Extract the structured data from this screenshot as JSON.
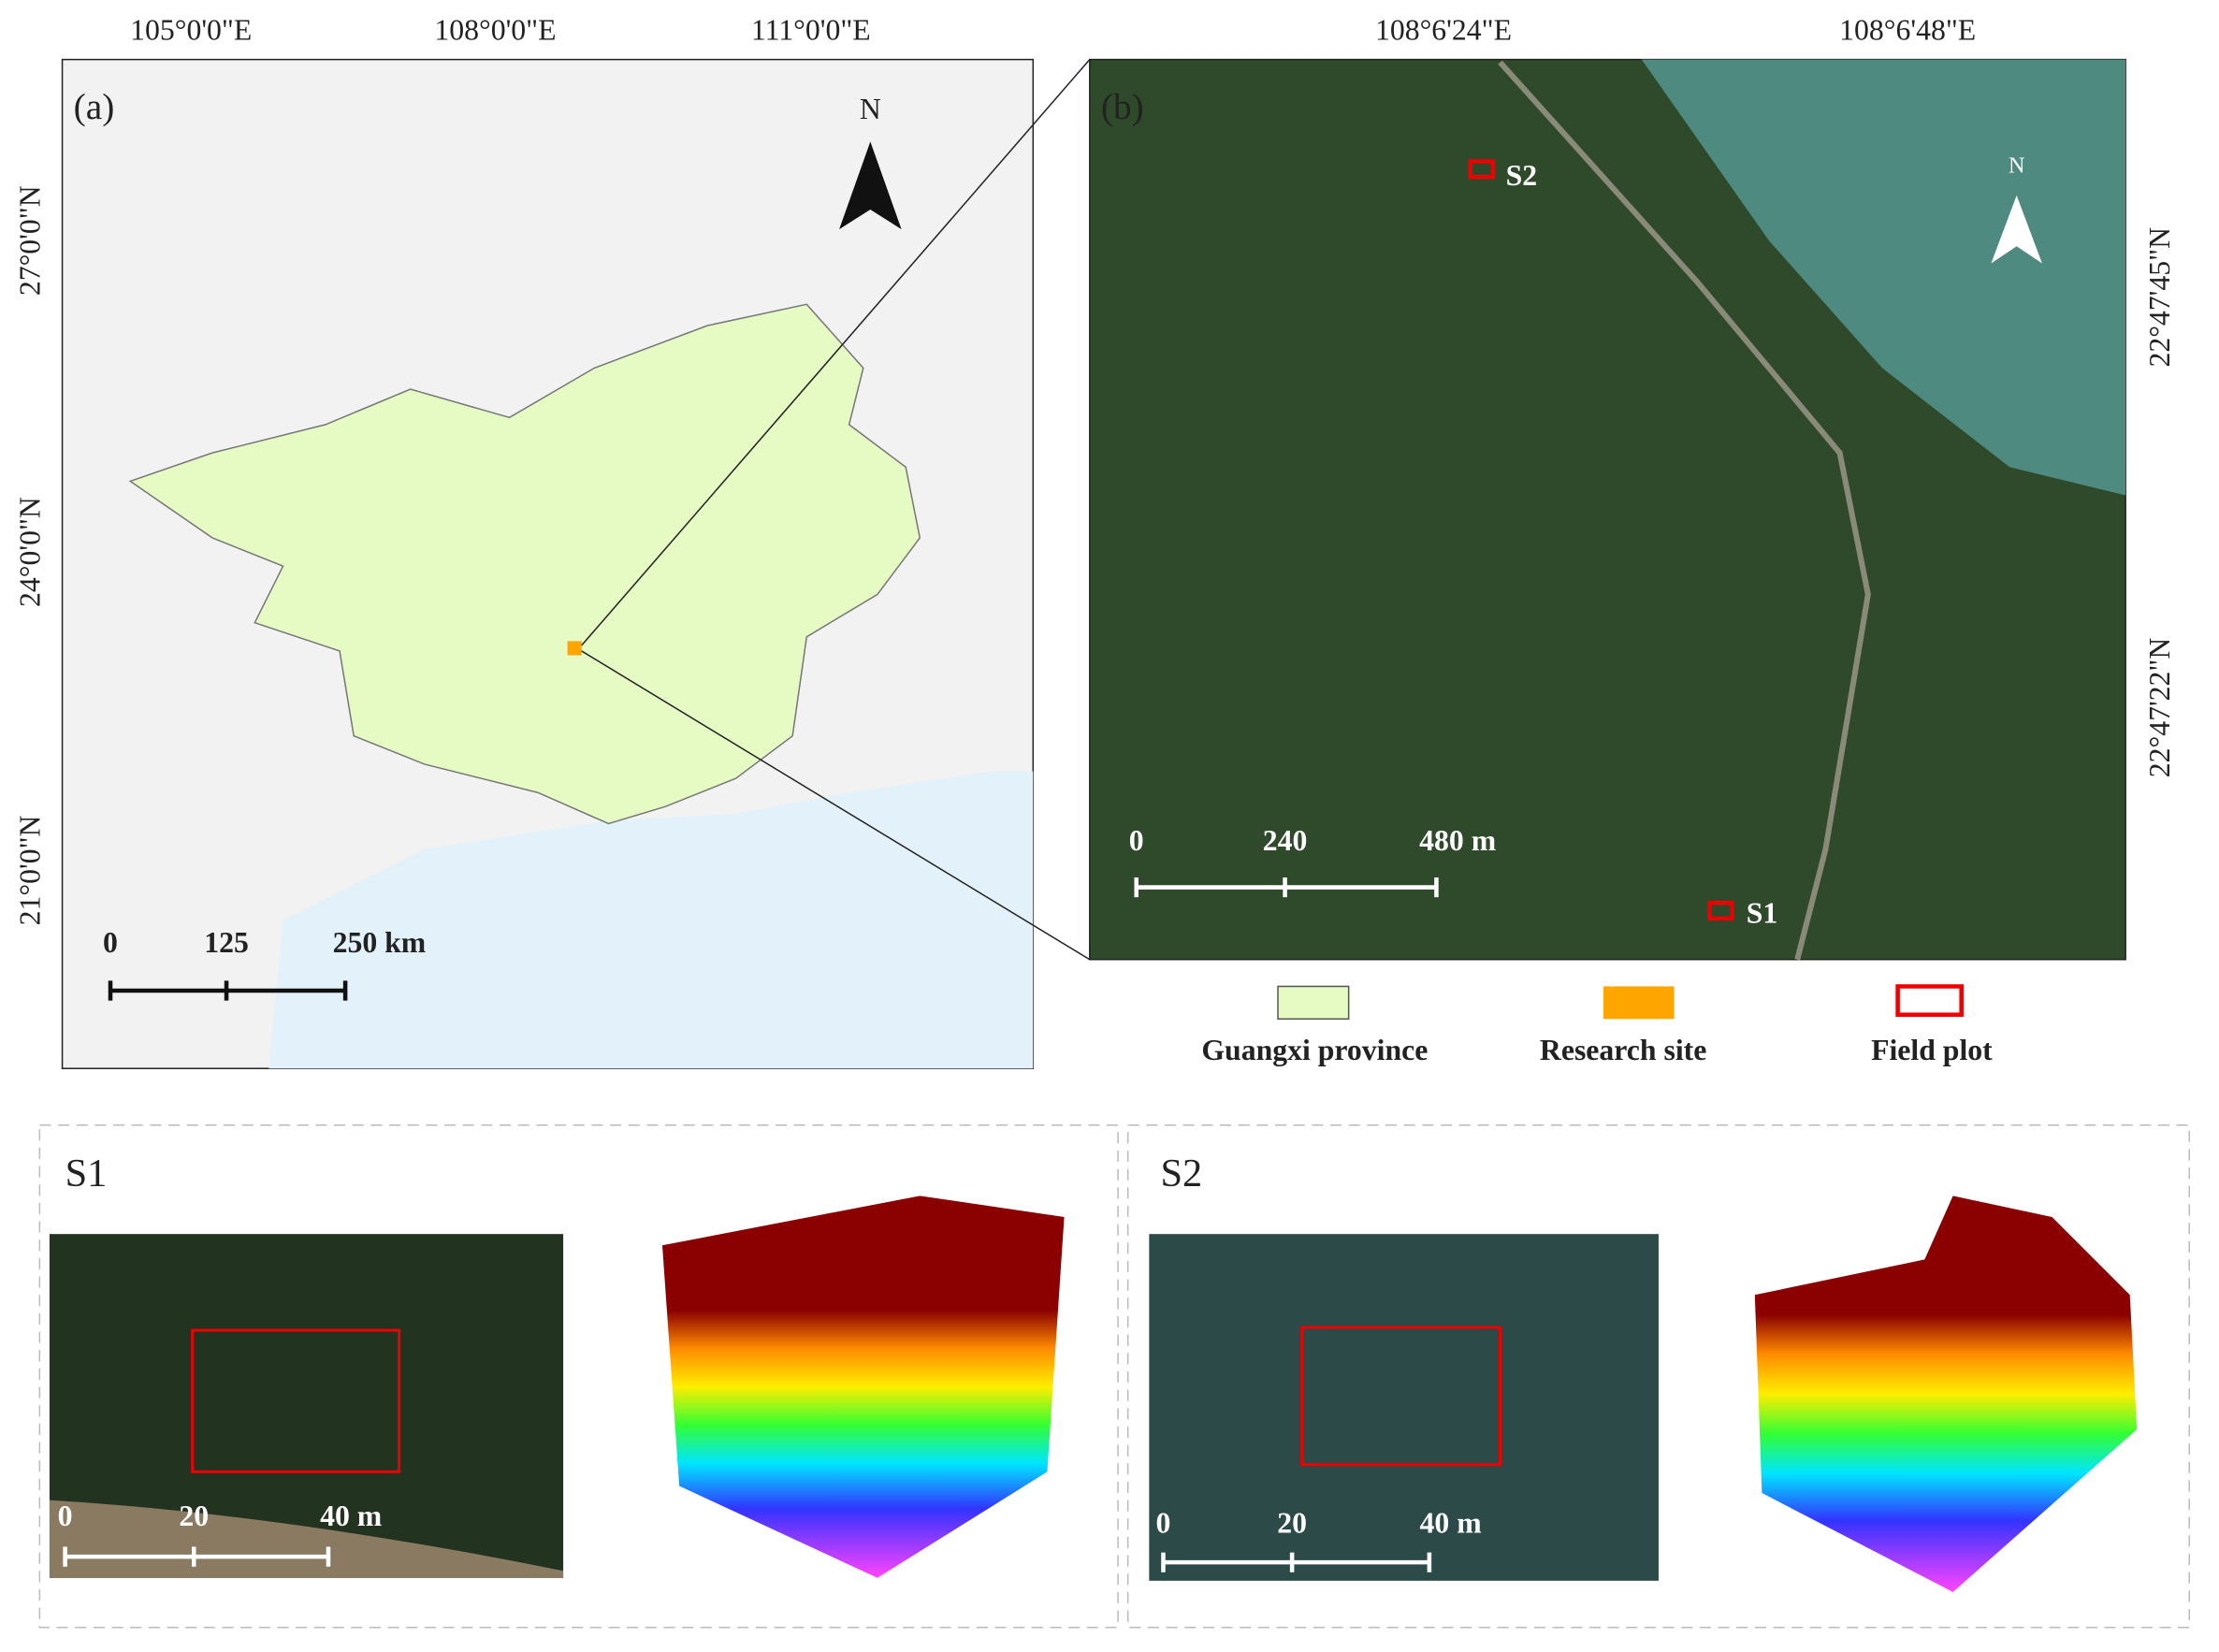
{
  "panel_a": {
    "label": "(a)",
    "longitudes": [
      "105°0'0\"E",
      "108°0'0\"E",
      "111°0'0\"E"
    ],
    "latitudes": [
      "27°0'0\"N",
      "24°0'0\"N",
      "21°0'0\"N"
    ],
    "north": "N",
    "scale_bar": [
      "0",
      "125",
      "250 km"
    ]
  },
  "panel_b": {
    "label": "(b)",
    "longitudes": [
      "108°6'24\"E",
      "108°6'48\"E"
    ],
    "latitudes": [
      "22°47'45\"N",
      "22°47'22\"N"
    ],
    "plots": [
      "S2",
      "S1"
    ],
    "north": "N",
    "scale_bar": [
      "0",
      "240",
      "480 m"
    ]
  },
  "legend": [
    "Guangxi province",
    "Research site",
    "Field plot"
  ],
  "sites": [
    {
      "title": "S1",
      "scale_bar": [
        "0",
        "20",
        "40 m"
      ]
    },
    {
      "title": "S2",
      "scale_bar": [
        "0",
        "20",
        "40 m"
      ]
    }
  ]
}
